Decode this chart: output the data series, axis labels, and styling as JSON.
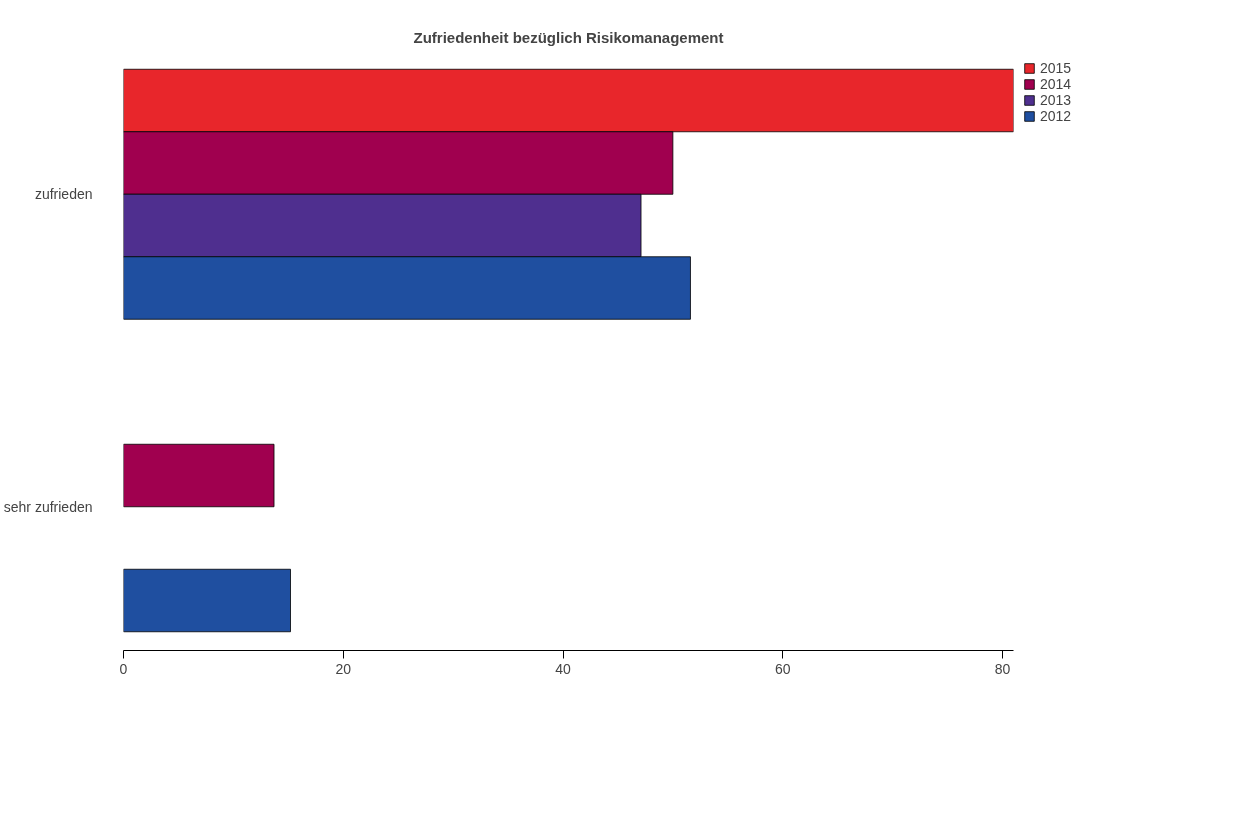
{
  "chart_data": {
    "type": "bar",
    "orientation": "horizontal",
    "title": "Zufriedenheit bezüglich Risikomanagement",
    "categories": [
      "zufrieden",
      "sehr zufrieden"
    ],
    "series": [
      {
        "name": "2015",
        "color": "#e8262b",
        "values": [
          81.0,
          null
        ]
      },
      {
        "name": "2014",
        "color": "#a0004f",
        "values": [
          50.0,
          13.7
        ]
      },
      {
        "name": "2013",
        "color": "#4f2f8f",
        "values": [
          47.1,
          null
        ]
      },
      {
        "name": "2012",
        "color": "#1f4fa0",
        "values": [
          51.6,
          15.2
        ]
      }
    ],
    "xlim": [
      0,
      81
    ],
    "xticks": [
      0,
      20,
      40,
      60,
      80
    ],
    "grid": false,
    "legend": "top right"
  }
}
